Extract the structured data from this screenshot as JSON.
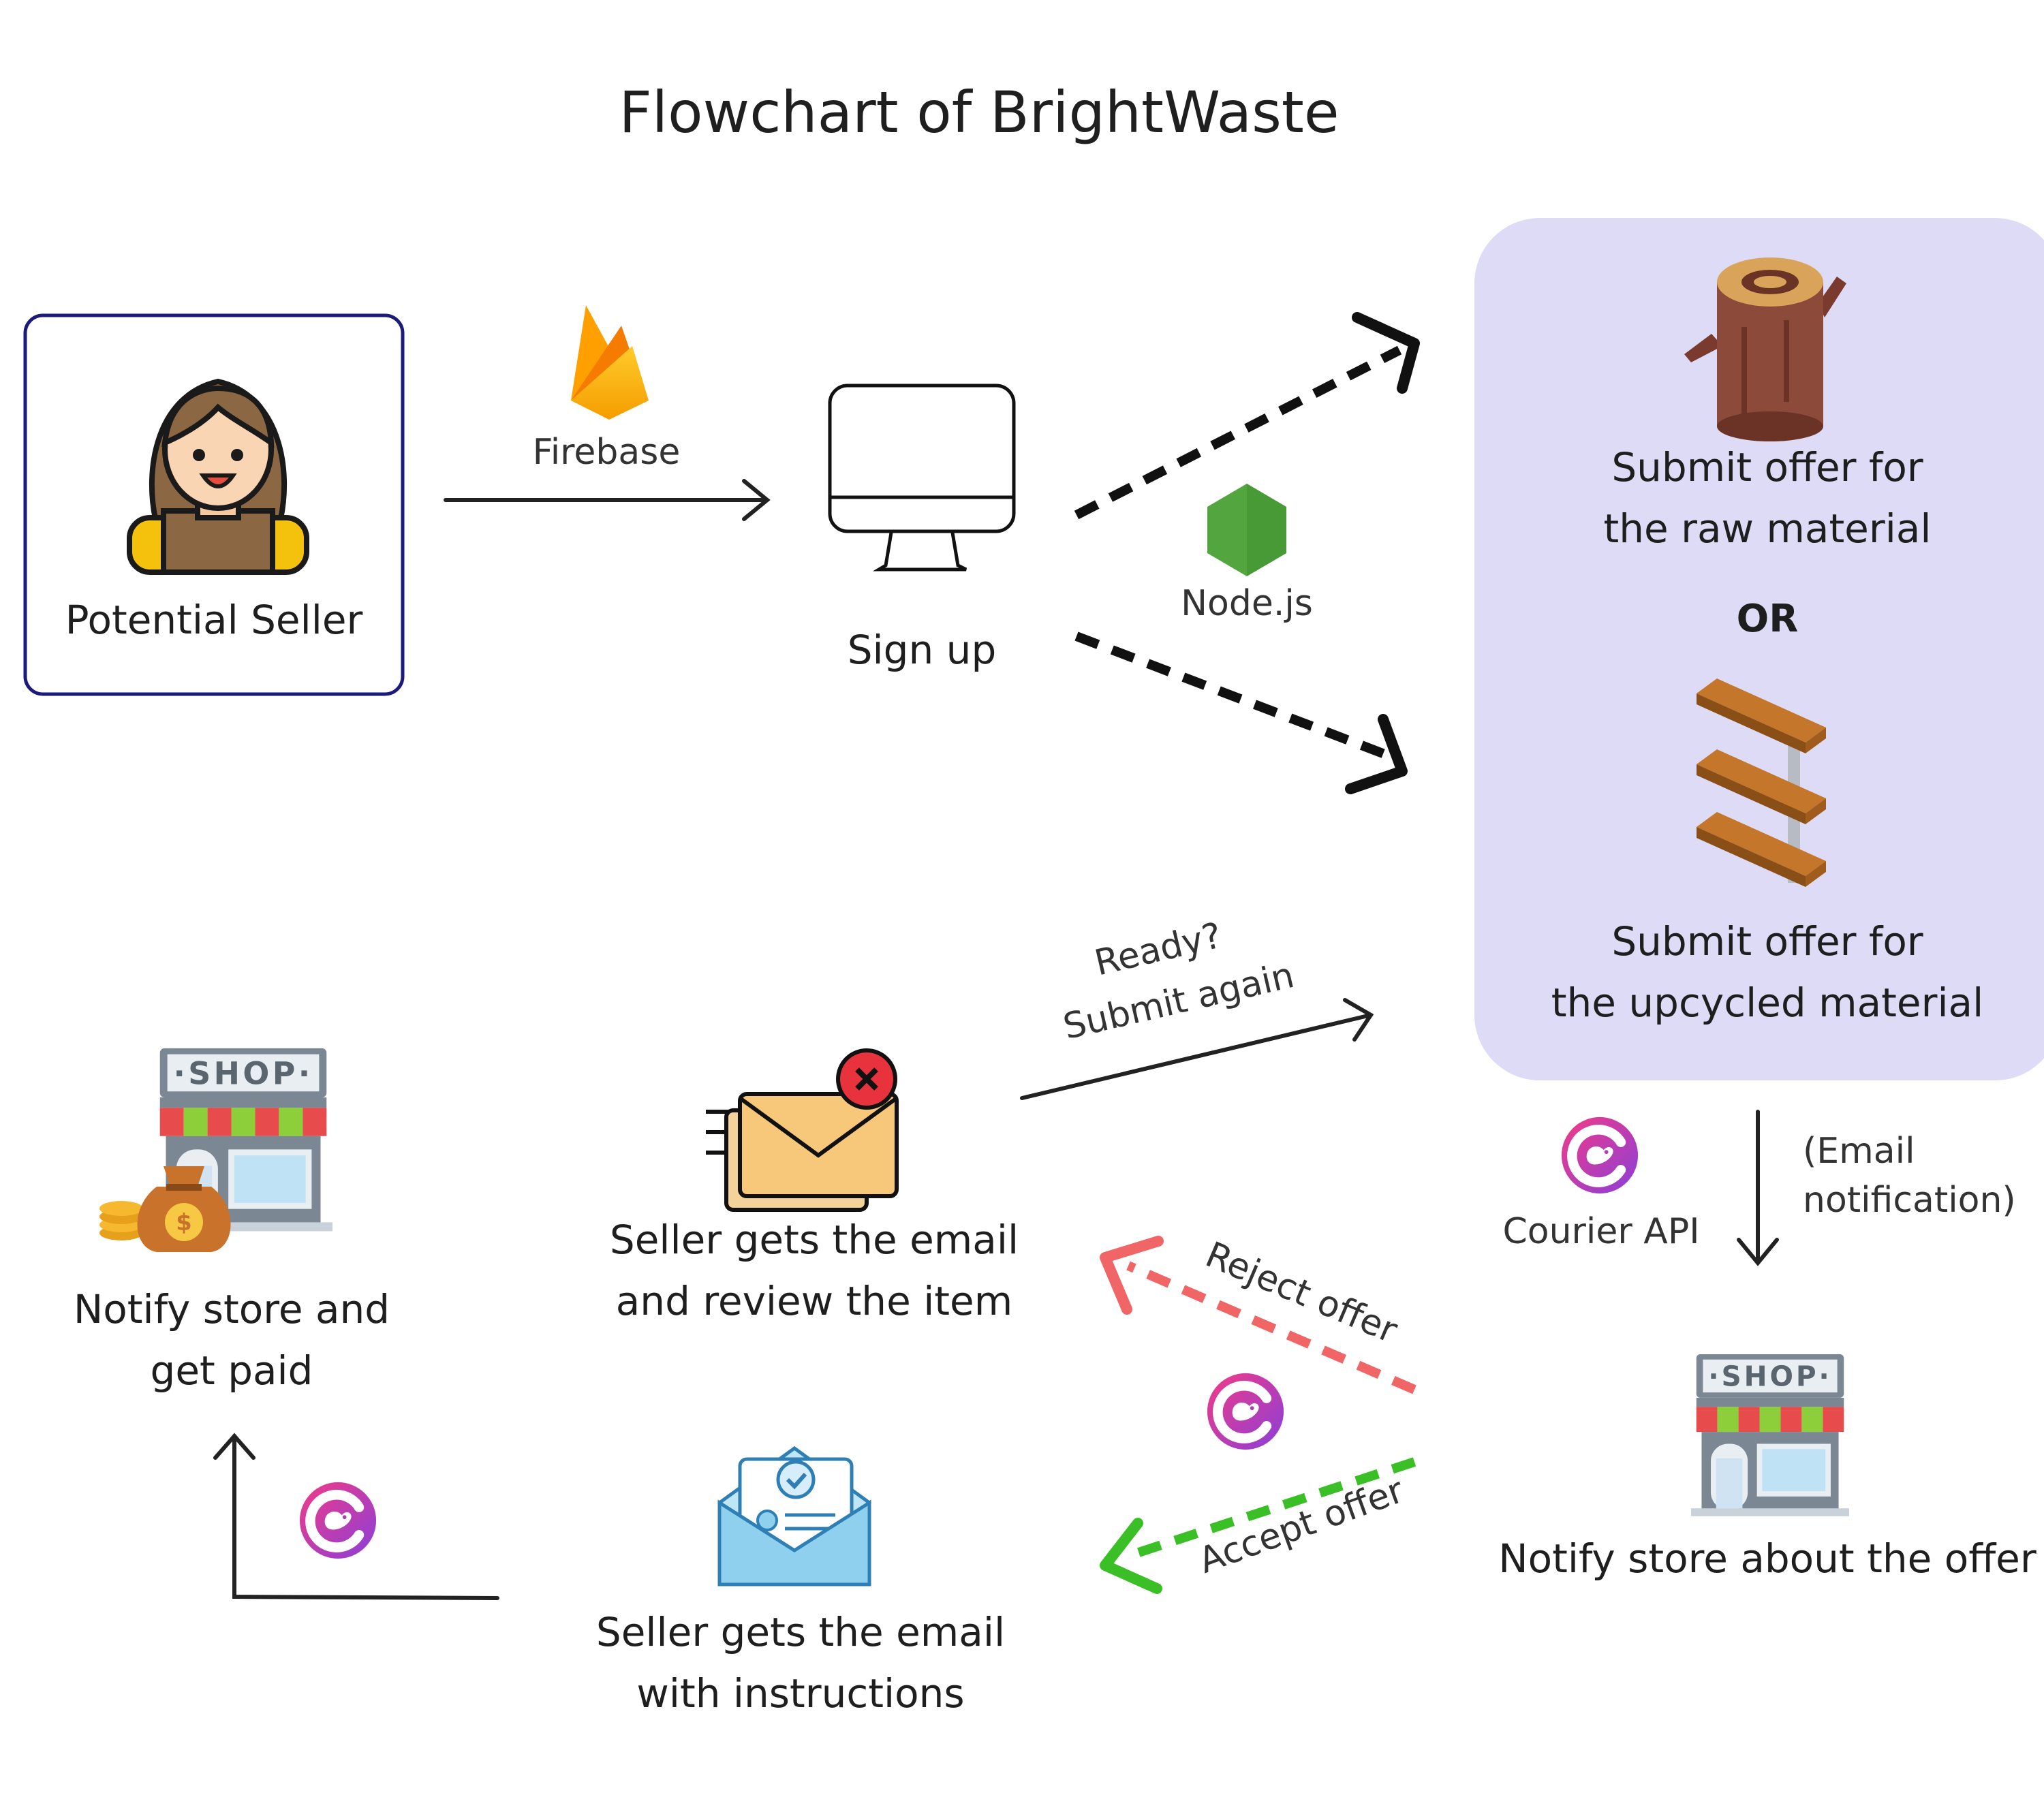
{
  "title": "Flowchart of BrightWaste",
  "nodes": {
    "seller": "Potential Seller",
    "signup": "Sign up",
    "raw": [
      "Submit offer for",
      "the raw material"
    ],
    "or": "OR",
    "upcycled": [
      "Submit offer for",
      "the upcycled material"
    ],
    "store_offer": "Notify store about the offer",
    "email_review": [
      "Seller gets the email",
      "and review the item"
    ],
    "email_instructions": [
      "Seller gets the email",
      "with instructions"
    ],
    "store_paid": [
      "Notify store and",
      "get paid"
    ]
  },
  "edges": {
    "firebase": "Firebase",
    "nodejs": "Node.js",
    "courier": "Courier API",
    "email_notification": [
      "(Email",
      "notification)"
    ],
    "ready": [
      "Ready?",
      "Submit again"
    ],
    "reject": "Reject offer",
    "accept": "Accept offer"
  },
  "colors": {
    "panel": "#dddbf5",
    "seller_border": "#1c1a7a",
    "reject": "#f06565",
    "accept": "#3bbf27",
    "courier_gradient": [
      "#e9358d",
      "#8c3ed8"
    ]
  },
  "icons": [
    "woman-seller-icon",
    "firebase-icon",
    "monitor-icon",
    "nodejs-icon",
    "log-icon",
    "shelf-icon",
    "courier-icon",
    "shop-icon",
    "mail-reject-icon",
    "mail-check-icon",
    "money-bag-icon"
  ]
}
